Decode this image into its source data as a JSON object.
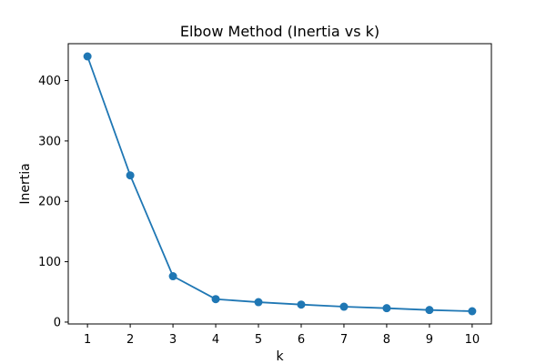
{
  "chart_data": {
    "type": "line",
    "title": "Elbow Method (Inertia vs k)",
    "xlabel": "k",
    "ylabel": "Inertia",
    "x": [
      1,
      2,
      3,
      4,
      5,
      6,
      7,
      8,
      9,
      10
    ],
    "series": [
      {
        "name": "Inertia",
        "values": [
          440,
          243,
          76,
          38,
          33,
          29,
          25.5,
          23,
          20,
          18
        ]
      }
    ],
    "xticks": [
      1,
      2,
      3,
      4,
      5,
      6,
      7,
      8,
      9,
      10
    ],
    "yticks": [
      0,
      100,
      200,
      300,
      400
    ],
    "xlim": [
      0.55,
      10.45
    ],
    "ylim": [
      -3.1,
      461.1
    ],
    "grid": false,
    "marker": "circle",
    "color": "#1f77b4"
  }
}
